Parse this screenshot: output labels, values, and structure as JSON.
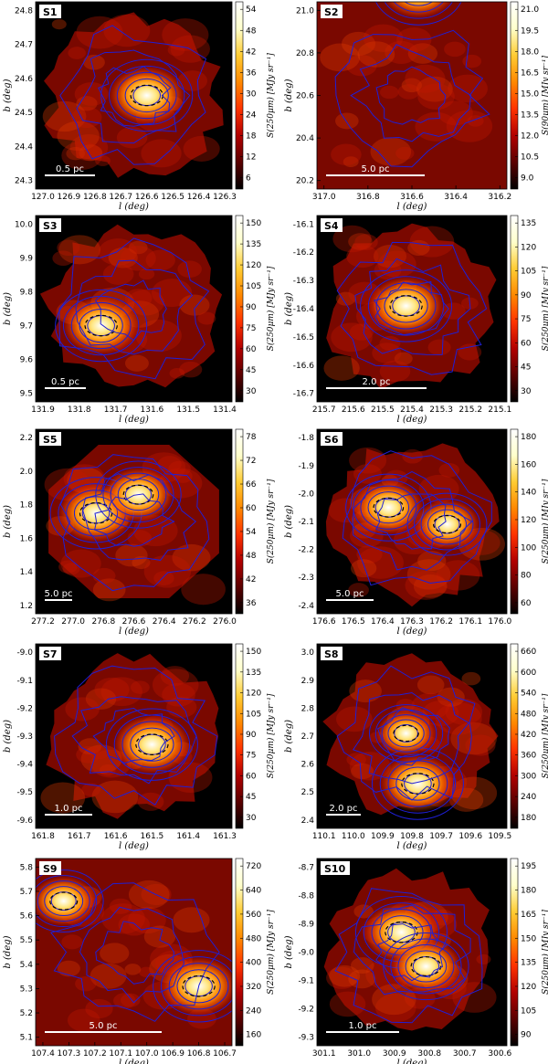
{
  "chart_data": [
    {
      "type": "heatmap",
      "title": "S1",
      "xlabel": "l (deg)",
      "ylabel": "b (deg)",
      "colorbar_label": "S(250μm) [MJy sr⁻¹]",
      "scale_bar": "0.5 pc",
      "xticks": [
        "127.0",
        "126.9",
        "126.8",
        "126.7",
        "126.6",
        "126.5",
        "126.4",
        "126.3"
      ],
      "yticks": [
        "24.8",
        "24.7",
        "24.6",
        "24.5",
        "24.4",
        "24.3"
      ],
      "cbar_ticks": [
        "54",
        "48",
        "42",
        "36",
        "30",
        "24",
        "18",
        "12",
        "6"
      ],
      "shape": "ragged",
      "peaks": [
        {
          "l": 126.6,
          "b": 24.55,
          "level": 1.0
        }
      ]
    },
    {
      "type": "heatmap",
      "title": "S2",
      "xlabel": "l (deg)",
      "ylabel": "b (deg)",
      "colorbar_label": "S(90μm) [MJy sr⁻¹]",
      "scale_bar": "5.0 pc",
      "xticks": [
        "317.0",
        "316.8",
        "316.6",
        "316.4",
        "316.2"
      ],
      "yticks": [
        "21.0",
        "20.8",
        "20.6",
        "20.4",
        "20.2"
      ],
      "cbar_ticks": [
        "21.0",
        "19.5",
        "18.0",
        "16.5",
        "15.0",
        "13.5",
        "12.0",
        "10.5",
        "9.0"
      ],
      "shape": "square",
      "peaks": [
        {
          "l": 316.57,
          "b": 21.1,
          "level": 1.0
        }
      ]
    },
    {
      "type": "heatmap",
      "title": "S3",
      "xlabel": "l (deg)",
      "ylabel": "b (deg)",
      "colorbar_label": "S(250μm) [MJy sr⁻¹]",
      "scale_bar": "0.5 pc",
      "xticks": [
        "131.9",
        "131.8",
        "131.7",
        "131.6",
        "131.5",
        "131.4"
      ],
      "yticks": [
        "10.0",
        "9.9",
        "9.8",
        "9.7",
        "9.6",
        "9.5"
      ],
      "cbar_ticks": [
        "150",
        "135",
        "120",
        "105",
        "90",
        "75",
        "60",
        "45",
        "30"
      ],
      "shape": "ragged",
      "peaks": [
        {
          "l": 131.74,
          "b": 9.7,
          "level": 1.0
        }
      ]
    },
    {
      "type": "heatmap",
      "title": "S4",
      "xlabel": "l (deg)",
      "ylabel": "b (deg)",
      "colorbar_label": "S(250μm) [MJy sr⁻¹]",
      "scale_bar": "2.0 pc",
      "xticks": [
        "215.7",
        "215.6",
        "215.5",
        "215.4",
        "215.3",
        "215.2",
        "215.1"
      ],
      "yticks": [
        "-16.1",
        "-16.2",
        "-16.3",
        "-16.4",
        "-16.5",
        "-16.6",
        "-16.7"
      ],
      "cbar_ticks": [
        "135",
        "120",
        "105",
        "90",
        "75",
        "60",
        "45",
        "30"
      ],
      "shape": "ragged",
      "peaks": [
        {
          "l": 215.42,
          "b": -16.39,
          "level": 1.0
        }
      ]
    },
    {
      "type": "heatmap",
      "title": "S5",
      "xlabel": "l (deg)",
      "ylabel": "b (deg)",
      "colorbar_label": "S(250μm) [MJy sr⁻¹]",
      "scale_bar": "5.0 pc",
      "xticks": [
        "277.2",
        "277.0",
        "276.8",
        "276.6",
        "276.4",
        "276.2",
        "276.0"
      ],
      "yticks": [
        "2.2",
        "2.0",
        "1.8",
        "1.6",
        "1.4",
        "1.2"
      ],
      "cbar_ticks": [
        "78",
        "72",
        "66",
        "60",
        "54",
        "48",
        "42",
        "36"
      ],
      "shape": "octagon",
      "peaks": [
        {
          "l": 276.85,
          "b": 1.75,
          "level": 1.0
        },
        {
          "l": 276.57,
          "b": 1.86,
          "level": 0.9
        }
      ]
    },
    {
      "type": "heatmap",
      "title": "S6",
      "xlabel": "l (deg)",
      "ylabel": "b (deg)",
      "colorbar_label": "S(250μm) [MJy sr⁻¹]",
      "scale_bar": "5.0 pc",
      "xticks": [
        "176.6",
        "176.5",
        "176.4",
        "176.3",
        "176.2",
        "176.1",
        "176.0"
      ],
      "yticks": [
        "-1.8",
        "-1.9",
        "-2.0",
        "-2.1",
        "-2.2",
        "-2.3",
        "-2.4"
      ],
      "cbar_ticks": [
        "180",
        "160",
        "140",
        "120",
        "100",
        "80",
        "60"
      ],
      "shape": "ragged",
      "peaks": [
        {
          "l": 176.38,
          "b": -2.05,
          "level": 0.9
        },
        {
          "l": 176.18,
          "b": -2.11,
          "level": 0.8
        }
      ]
    },
    {
      "type": "heatmap",
      "title": "S7",
      "xlabel": "l (deg)",
      "ylabel": "b (deg)",
      "colorbar_label": "S(250μm) [MJy sr⁻¹]",
      "scale_bar": "1.0 pc",
      "xticks": [
        "161.8",
        "161.7",
        "161.6",
        "161.5",
        "161.4",
        "161.3"
      ],
      "yticks": [
        "-9.0",
        "-9.1",
        "-9.2",
        "-9.3",
        "-9.4",
        "-9.5",
        "-9.6"
      ],
      "cbar_ticks": [
        "150",
        "135",
        "120",
        "105",
        "90",
        "75",
        "60",
        "45",
        "30"
      ],
      "shape": "ragged",
      "peaks": [
        {
          "l": 161.5,
          "b": -9.33,
          "level": 1.0
        }
      ]
    },
    {
      "type": "heatmap",
      "title": "S8",
      "xlabel": "l (deg)",
      "ylabel": "b (deg)",
      "colorbar_label": "S(250μm) [MJy sr⁻¹]",
      "scale_bar": "2.0 pc",
      "xticks": [
        "110.1",
        "110.0",
        "109.9",
        "109.8",
        "109.7",
        "109.6",
        "109.5"
      ],
      "yticks": [
        "3.0",
        "2.9",
        "2.8",
        "2.7",
        "2.6",
        "2.5",
        "2.4"
      ],
      "cbar_ticks": [
        "660",
        "600",
        "540",
        "480",
        "420",
        "360",
        "300",
        "240",
        "180"
      ],
      "shape": "ragged",
      "peaks": [
        {
          "l": 109.78,
          "b": 2.53,
          "level": 1.0
        },
        {
          "l": 109.82,
          "b": 2.71,
          "level": 0.7
        }
      ]
    },
    {
      "type": "heatmap",
      "title": "S9",
      "xlabel": "l (deg)",
      "ylabel": "b (deg)",
      "colorbar_label": "S(250μm) [MJy sr⁻¹]",
      "scale_bar": "5.0 pc",
      "xticks": [
        "107.4",
        "107.3",
        "107.2",
        "107.1",
        "107.0",
        "106.9",
        "106.8",
        "106.7"
      ],
      "yticks": [
        "5.8",
        "5.7",
        "5.6",
        "5.5",
        "5.4",
        "5.3",
        "5.2",
        "5.1"
      ],
      "cbar_ticks": [
        "720",
        "640",
        "560",
        "480",
        "400",
        "320",
        "240",
        "160"
      ],
      "shape": "square",
      "peaks": [
        {
          "l": 106.8,
          "b": 5.31,
          "level": 1.0
        },
        {
          "l": 107.32,
          "b": 5.66,
          "level": 0.8
        }
      ]
    },
    {
      "type": "heatmap",
      "title": "S10",
      "xlabel": "l (deg)",
      "ylabel": "b (deg)",
      "colorbar_label": "S(250μm) [MJy sr⁻¹]",
      "scale_bar": "1.0 pc",
      "xticks": [
        "301.1",
        "301.0",
        "300.9",
        "300.8",
        "300.7",
        "300.6"
      ],
      "yticks": [
        "-8.7",
        "-8.8",
        "-8.9",
        "-9.0",
        "-9.1",
        "-9.2",
        "-9.3"
      ],
      "cbar_ticks": [
        "195",
        "180",
        "165",
        "150",
        "135",
        "120",
        "105",
        "90"
      ],
      "shape": "ragged",
      "peaks": [
        {
          "l": 300.88,
          "b": -8.93,
          "level": 1.0
        },
        {
          "l": 300.81,
          "b": -9.05,
          "level": 0.9
        }
      ]
    }
  ],
  "colors": {
    "contour": "#1f1fd6",
    "dashed_contour": "#000000",
    "scale_bar": "#ffffff",
    "colormap": [
      "#000000",
      "#5a0000",
      "#b20000",
      "#ff3300",
      "#ff8800",
      "#ffcc33",
      "#ffffcc",
      "#ffffff"
    ]
  }
}
